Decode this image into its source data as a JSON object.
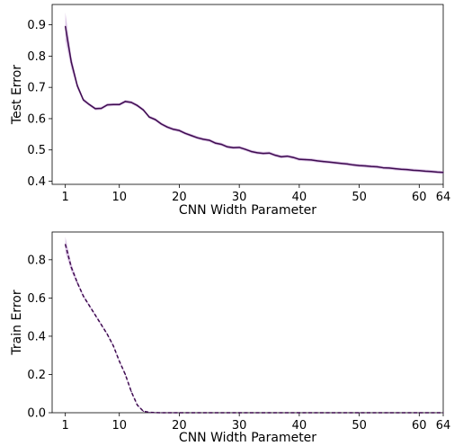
{
  "chart_data": [
    {
      "type": "line",
      "title": "",
      "xlabel": "CNN Width Parameter",
      "ylabel": "Test Error",
      "xlim": [
        -1.2,
        64
      ],
      "ylim": [
        0.39,
        0.965
      ],
      "xticks": [
        1,
        10,
        20,
        30,
        40,
        50,
        60,
        64
      ],
      "xtick_labels": [
        "1",
        "10",
        "20",
        "30",
        "40",
        "50",
        "60",
        "64"
      ],
      "yticks": [
        0.4,
        0.5,
        0.6,
        0.7,
        0.8,
        0.9
      ],
      "ytick_labels": [
        "0.4",
        "0.5",
        "0.6",
        "0.7",
        "0.8",
        "0.9"
      ],
      "grid": false,
      "legend": "none",
      "series": [
        {
          "line_style": "solid",
          "color": "#3d0a4f",
          "band_color": "#b07cc6",
          "x": [
            1,
            2,
            3,
            4,
            5,
            6,
            7,
            8,
            9,
            10,
            11,
            12,
            13,
            14,
            15,
            16,
            17,
            18,
            19,
            20,
            21,
            22,
            23,
            24,
            25,
            26,
            27,
            28,
            29,
            30,
            31,
            32,
            33,
            34,
            35,
            36,
            37,
            38,
            39,
            40,
            41,
            42,
            43,
            44,
            45,
            46,
            47,
            48,
            49,
            50,
            51,
            52,
            53,
            54,
            55,
            56,
            57,
            58,
            59,
            60,
            61,
            62,
            63,
            64
          ],
          "values": [
            0.895,
            0.78,
            0.705,
            0.66,
            0.645,
            0.632,
            0.633,
            0.644,
            0.645,
            0.645,
            0.655,
            0.652,
            0.642,
            0.628,
            0.605,
            0.597,
            0.583,
            0.573,
            0.566,
            0.562,
            0.553,
            0.546,
            0.539,
            0.534,
            0.531,
            0.522,
            0.518,
            0.51,
            0.507,
            0.508,
            0.502,
            0.495,
            0.491,
            0.489,
            0.49,
            0.483,
            0.478,
            0.48,
            0.476,
            0.47,
            0.469,
            0.468,
            0.465,
            0.463,
            0.461,
            0.459,
            0.457,
            0.455,
            0.452,
            0.45,
            0.449,
            0.447,
            0.446,
            0.443,
            0.442,
            0.44,
            0.438,
            0.437,
            0.435,
            0.434,
            0.432,
            0.431,
            0.429,
            0.428
          ],
          "band_halfwidth": [
            0.045,
            0.02,
            0.01,
            0.006,
            0.005,
            0.005,
            0.005,
            0.005,
            0.005,
            0.005,
            0.005,
            0.005,
            0.005,
            0.005,
            0.005,
            0.005,
            0.005,
            0.005,
            0.005,
            0.005,
            0.005,
            0.005,
            0.005,
            0.005,
            0.005,
            0.005,
            0.005,
            0.005,
            0.005,
            0.005,
            0.005,
            0.005,
            0.005,
            0.005,
            0.005,
            0.005,
            0.005,
            0.005,
            0.005,
            0.005,
            0.005,
            0.005,
            0.005,
            0.005,
            0.005,
            0.005,
            0.005,
            0.005,
            0.005,
            0.005,
            0.005,
            0.005,
            0.005,
            0.005,
            0.005,
            0.005,
            0.005,
            0.005,
            0.005,
            0.005,
            0.005,
            0.005,
            0.005,
            0.005
          ]
        }
      ]
    },
    {
      "type": "line",
      "title": "",
      "xlabel": "CNN Width Parameter",
      "ylabel": "Train Error",
      "xlim": [
        -1.2,
        64
      ],
      "ylim": [
        0.0,
        0.945
      ],
      "xticks": [
        1,
        10,
        20,
        30,
        40,
        50,
        60,
        64
      ],
      "xtick_labels": [
        "1",
        "10",
        "20",
        "30",
        "40",
        "50",
        "60",
        "64"
      ],
      "yticks": [
        0.0,
        0.2,
        0.4,
        0.6,
        0.8
      ],
      "ytick_labels": [
        "0.0",
        "0.2",
        "0.4",
        "0.6",
        "0.8"
      ],
      "grid": false,
      "legend": "none",
      "series": [
        {
          "line_style": "dashed",
          "color": "#3d0a4f",
          "band_color": "#b07cc6",
          "x": [
            1,
            2,
            3,
            4,
            5,
            6,
            7,
            8,
            9,
            10,
            11,
            12,
            13,
            14,
            15,
            16,
            17,
            18,
            19,
            20,
            25,
            30,
            35,
            40,
            45,
            50,
            55,
            60,
            64
          ],
          "values": [
            0.88,
            0.76,
            0.68,
            0.61,
            0.56,
            0.51,
            0.46,
            0.41,
            0.35,
            0.27,
            0.2,
            0.11,
            0.04,
            0.008,
            0.002,
            0.001,
            0.0,
            0.0,
            0.0,
            0.0,
            0.0,
            0.0,
            0.0,
            0.0,
            0.0,
            0.0,
            0.0,
            0.0,
            0.0
          ],
          "band_halfwidth": [
            0.04,
            0.02,
            0.01,
            0.008,
            0.006,
            0.006,
            0.006,
            0.006,
            0.006,
            0.006,
            0.006,
            0.006,
            0.005,
            0.003,
            0.001,
            0.0,
            0.0,
            0.0,
            0.0,
            0.0,
            0.0,
            0.0,
            0.0,
            0.0,
            0.0,
            0.0,
            0.0,
            0.0,
            0.0
          ]
        }
      ]
    }
  ]
}
